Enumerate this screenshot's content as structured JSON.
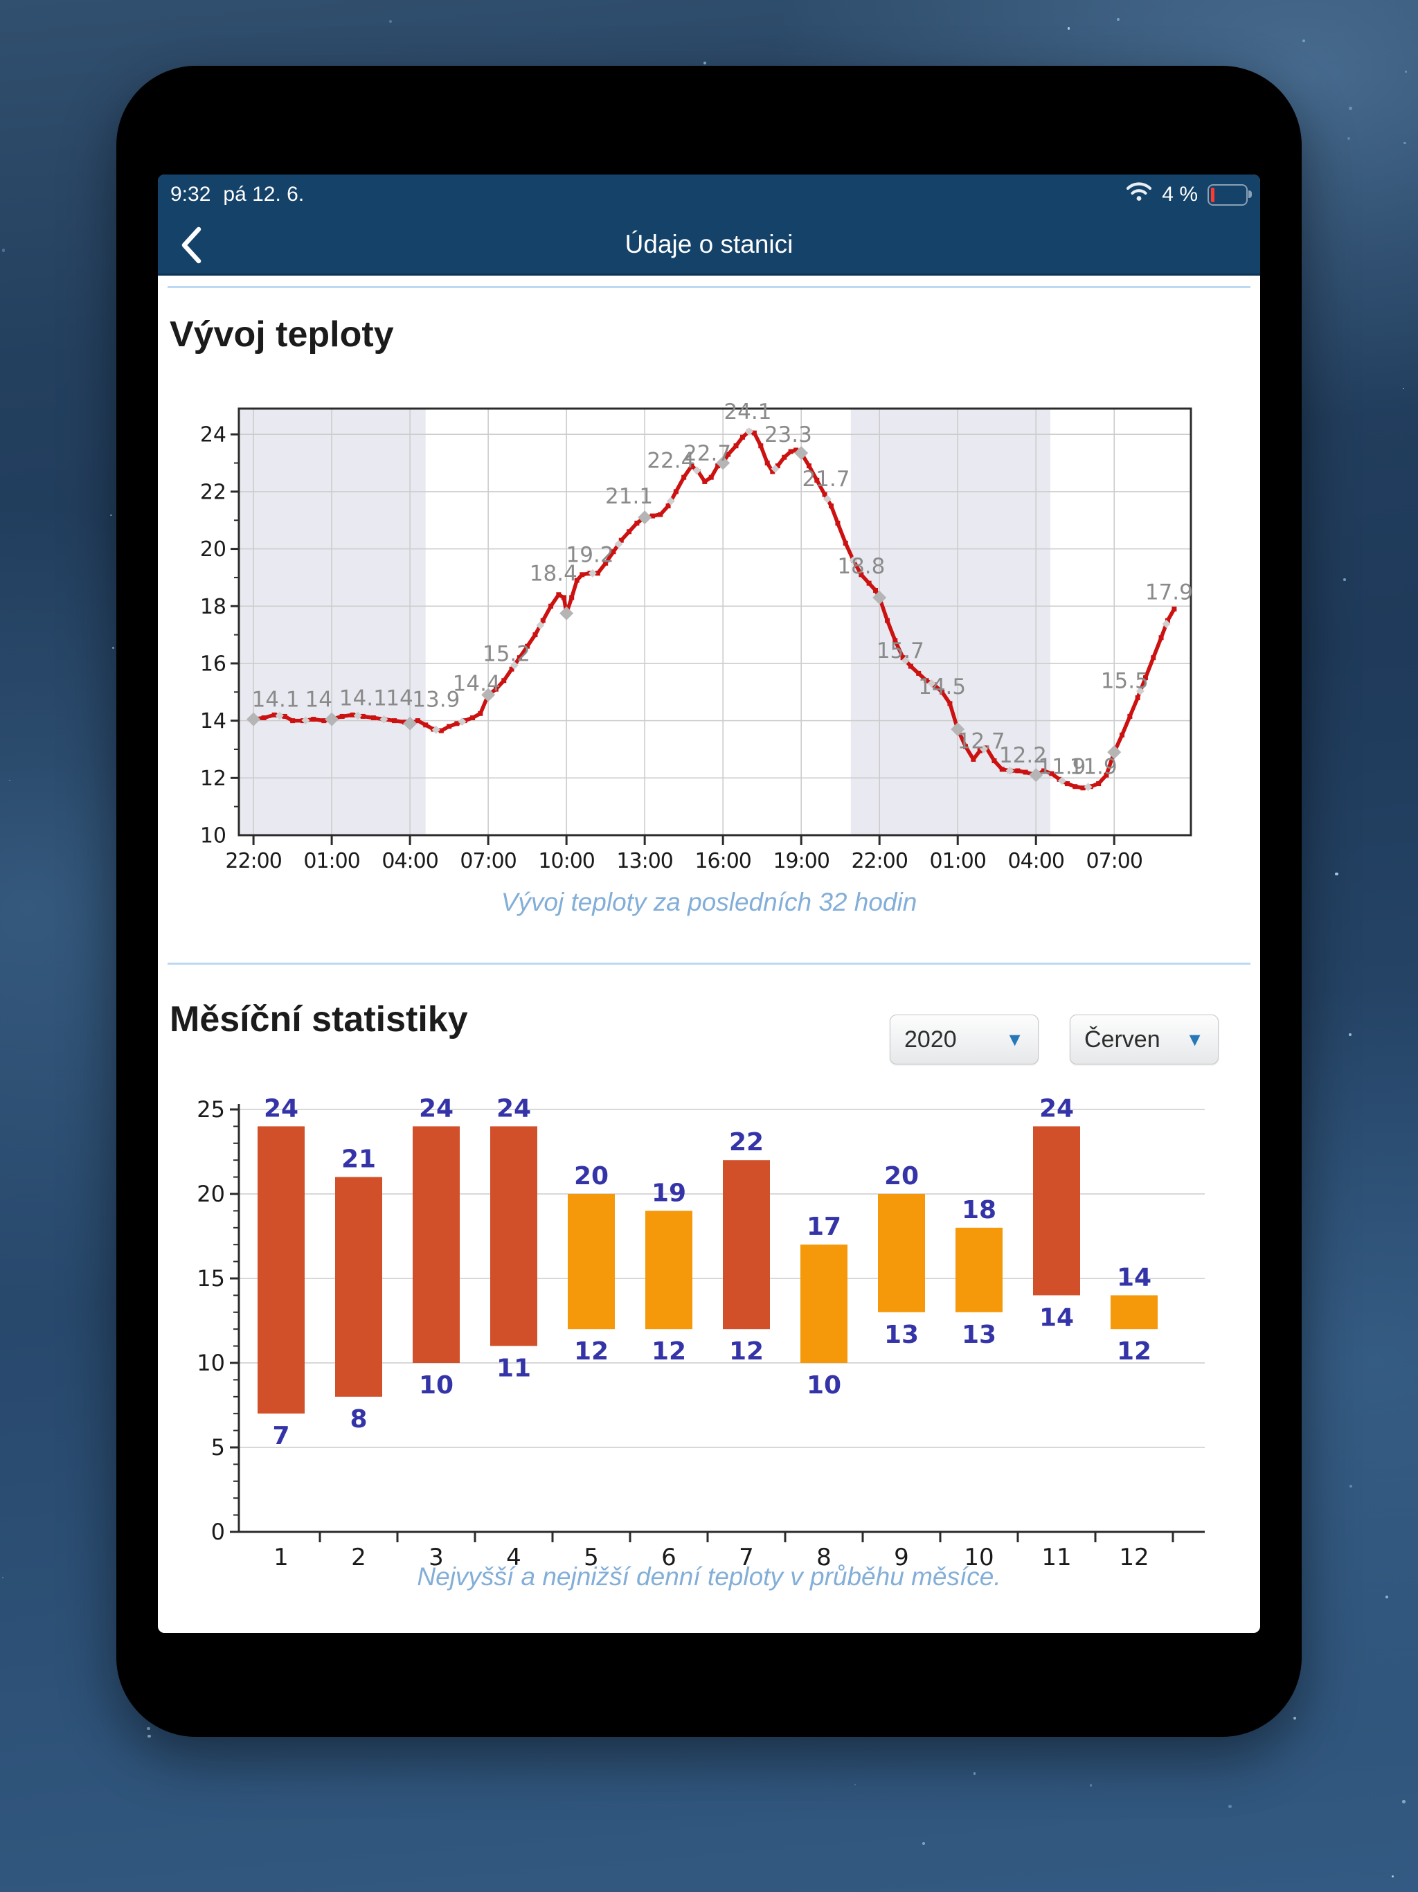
{
  "status_bar": {
    "time": "9:32",
    "date": "pá 12. 6.",
    "battery_percent": "4 %"
  },
  "nav": {
    "title": "Údaje o stanici"
  },
  "temp_section": {
    "title": "Vývoj teploty",
    "caption": "Vývoj teploty za posledních 32 hodin"
  },
  "monthly_section": {
    "title": "Měsíční statistiky",
    "caption": "Nejvyšší a nejnižší denní teploty v průběhu měsíce.",
    "year": "2020",
    "month": "Červen",
    "dropdown_arrow": "▼"
  },
  "colors": {
    "nav_blue": "#154269",
    "accent_blue": "#2878b8",
    "caption_blue": "#82aed8",
    "divider_blue": "#bcd8f2",
    "battery_red": "#ff3b30"
  },
  "chart_data": [
    {
      "type": "line",
      "title": "Vývoj teploty",
      "xlabel": "",
      "ylabel": "",
      "x_tick_hours": [
        0,
        3,
        6,
        9,
        12,
        15,
        18,
        21,
        24,
        27,
        30,
        33
      ],
      "x_tick_labels": [
        "22:00",
        "01:00",
        "04:00",
        "07:00",
        "10:00",
        "13:00",
        "16:00",
        "19:00",
        "22:00",
        "01:00",
        "04:00",
        "07:00"
      ],
      "xlim": [
        -0.56,
        35.94
      ],
      "ylim": [
        10,
        24.9
      ],
      "yticks": [
        10,
        12,
        14,
        16,
        18,
        20,
        22,
        24
      ],
      "grid": true,
      "night_bands": [
        [
          -0.56,
          6.6
        ],
        [
          22.9,
          30.55
        ]
      ],
      "band_color": "#e9eaf1",
      "line_color": "#cc1111",
      "marker_color": "#b5b5b5",
      "label_color": "#8a8a8a",
      "points": [
        [
          0,
          14.05
        ],
        [
          0.4,
          14.1
        ],
        [
          0.8,
          14.2
        ],
        [
          1.2,
          14.15
        ],
        [
          1.5,
          14.0
        ],
        [
          1.9,
          14.0
        ],
        [
          2.3,
          14.05
        ],
        [
          2.7,
          14.0
        ],
        [
          3,
          14.05
        ],
        [
          3.4,
          14.15
        ],
        [
          3.8,
          14.2
        ],
        [
          4.2,
          14.15
        ],
        [
          4.6,
          14.1
        ],
        [
          5,
          14.05
        ],
        [
          5.4,
          14.0
        ],
        [
          5.8,
          13.95
        ],
        [
          6,
          13.9
        ],
        [
          6.3,
          14.0
        ],
        [
          6.6,
          13.85
        ],
        [
          6.9,
          13.7
        ],
        [
          7.2,
          13.65
        ],
        [
          7.5,
          13.8
        ],
        [
          7.8,
          13.9
        ],
        [
          8.1,
          14.0
        ],
        [
          8.4,
          14.1
        ],
        [
          8.7,
          14.25
        ],
        [
          9,
          14.9
        ],
        [
          9.3,
          15.1
        ],
        [
          9.6,
          15.4
        ],
        [
          9.9,
          15.8
        ],
        [
          10.2,
          16.2
        ],
        [
          10.5,
          16.6
        ],
        [
          10.8,
          17.0
        ],
        [
          11.1,
          17.5
        ],
        [
          11.4,
          18.0
        ],
        [
          11.7,
          18.4
        ],
        [
          11.9,
          18.3
        ],
        [
          12,
          17.75
        ],
        [
          12.2,
          18.3
        ],
        [
          12.4,
          18.9
        ],
        [
          12.6,
          19.1
        ],
        [
          12.9,
          19.15
        ],
        [
          13.2,
          19.15
        ],
        [
          13.5,
          19.5
        ],
        [
          13.8,
          19.9
        ],
        [
          14.1,
          20.3
        ],
        [
          14.4,
          20.6
        ],
        [
          14.7,
          20.9
        ],
        [
          15,
          21.1
        ],
        [
          15.3,
          21.15
        ],
        [
          15.6,
          21.2
        ],
        [
          15.9,
          21.5
        ],
        [
          16.2,
          22.0
        ],
        [
          16.5,
          22.5
        ],
        [
          16.8,
          22.9
        ],
        [
          17.05,
          22.7
        ],
        [
          17.3,
          22.35
        ],
        [
          17.55,
          22.5
        ],
        [
          17.8,
          22.9
        ],
        [
          18,
          23.0
        ],
        [
          18.2,
          23.3
        ],
        [
          18.5,
          23.6
        ],
        [
          18.75,
          23.9
        ],
        [
          19,
          24.1
        ],
        [
          19.2,
          24.05
        ],
        [
          19.45,
          23.6
        ],
        [
          19.7,
          23.0
        ],
        [
          19.9,
          22.7
        ],
        [
          20.1,
          22.9
        ],
        [
          20.35,
          23.2
        ],
        [
          20.6,
          23.4
        ],
        [
          20.8,
          23.45
        ],
        [
          21,
          23.35
        ],
        [
          21.3,
          22.9
        ],
        [
          21.6,
          22.4
        ],
        [
          21.9,
          21.9
        ],
        [
          22.15,
          21.5
        ],
        [
          22.4,
          20.9
        ],
        [
          22.7,
          20.2
        ],
        [
          23,
          19.6
        ],
        [
          23.3,
          19.1
        ],
        [
          23.6,
          18.8
        ],
        [
          23.85,
          18.55
        ],
        [
          24,
          18.3
        ],
        [
          24.3,
          17.5
        ],
        [
          24.6,
          16.8
        ],
        [
          24.9,
          16.2
        ],
        [
          25.2,
          15.9
        ],
        [
          25.5,
          15.65
        ],
        [
          25.8,
          15.4
        ],
        [
          26.1,
          15.25
        ],
        [
          26.4,
          15.0
        ],
        [
          26.7,
          14.6
        ],
        [
          27,
          13.7
        ],
        [
          27.3,
          13.1
        ],
        [
          27.6,
          12.65
        ],
        [
          27.85,
          12.95
        ],
        [
          28.1,
          13.05
        ],
        [
          28.4,
          12.6
        ],
        [
          28.7,
          12.3
        ],
        [
          29,
          12.25
        ],
        [
          29.3,
          12.25
        ],
        [
          29.6,
          12.2
        ],
        [
          30,
          12.1
        ],
        [
          30.3,
          12.25
        ],
        [
          30.6,
          12.15
        ],
        [
          30.9,
          11.95
        ],
        [
          31.2,
          11.8
        ],
        [
          31.5,
          11.7
        ],
        [
          31.8,
          11.65
        ],
        [
          32.1,
          11.7
        ],
        [
          32.4,
          11.8
        ],
        [
          32.7,
          12.1
        ],
        [
          33,
          12.9
        ],
        [
          33.3,
          13.5
        ],
        [
          33.6,
          14.15
        ],
        [
          33.9,
          14.8
        ],
        [
          34.2,
          15.5
        ],
        [
          34.5,
          16.2
        ],
        [
          34.8,
          16.9
        ],
        [
          35.05,
          17.5
        ],
        [
          35.3,
          17.9
        ]
      ],
      "markers_3h": [
        [
          0,
          14.05
        ],
        [
          3,
          14.05
        ],
        [
          6,
          13.9
        ],
        [
          9,
          14.9
        ],
        [
          12,
          17.75
        ],
        [
          15,
          21.1
        ],
        [
          18,
          23.0
        ],
        [
          21,
          23.35
        ],
        [
          24,
          18.3
        ],
        [
          27,
          13.7
        ],
        [
          30,
          12.1
        ],
        [
          33,
          12.9
        ]
      ],
      "labels": [
        {
          "h": 0.85,
          "v": 14.75,
          "text": "14.1"
        },
        {
          "h": 2.5,
          "v": 14.75,
          "text": "14"
        },
        {
          "h": 4.2,
          "v": 14.8,
          "text": "14.1"
        },
        {
          "h": 5.6,
          "v": 14.8,
          "text": "14"
        },
        {
          "h": 7.0,
          "v": 14.75,
          "text": "13.9"
        },
        {
          "h": 8.55,
          "v": 15.3,
          "text": "14.4"
        },
        {
          "h": 9.7,
          "v": 16.35,
          "text": "15.2"
        },
        {
          "h": 11.5,
          "v": 19.15,
          "text": "18.4"
        },
        {
          "h": 12.9,
          "v": 19.8,
          "text": "19.2"
        },
        {
          "h": 14.4,
          "v": 21.85,
          "text": "21.1"
        },
        {
          "h": 16.0,
          "v": 23.1,
          "text": "22.4"
        },
        {
          "h": 17.4,
          "v": 23.35,
          "text": "22.7"
        },
        {
          "h": 18.95,
          "v": 24.8,
          "text": "24.1"
        },
        {
          "h": 20.5,
          "v": 24.0,
          "text": "23.3"
        },
        {
          "h": 21.95,
          "v": 22.45,
          "text": "21.7"
        },
        {
          "h": 23.3,
          "v": 19.4,
          "text": "18.8"
        },
        {
          "h": 24.8,
          "v": 16.45,
          "text": "15.7"
        },
        {
          "h": 26.4,
          "v": 15.2,
          "text": "14.5"
        },
        {
          "h": 27.9,
          "v": 13.3,
          "text": "12.7"
        },
        {
          "h": 29.5,
          "v": 12.8,
          "text": "12.2"
        },
        {
          "h": 31.0,
          "v": 12.4,
          "text": "11.9"
        },
        {
          "h": 32.2,
          "v": 12.4,
          "text": "11.9"
        },
        {
          "h": 33.4,
          "v": 15.4,
          "text": "15.5"
        },
        {
          "h": 35.1,
          "v": 18.5,
          "text": "17.9"
        }
      ]
    },
    {
      "type": "bar",
      "title": "Měsíční statistiky",
      "xlabel": "",
      "ylabel": "",
      "categories": [
        1,
        2,
        3,
        4,
        5,
        6,
        7,
        8,
        9,
        10,
        11,
        12
      ],
      "bars": [
        {
          "day": 1,
          "min": 7,
          "max": 24
        },
        {
          "day": 2,
          "min": 8,
          "max": 21
        },
        {
          "day": 3,
          "min": 10,
          "max": 24
        },
        {
          "day": 4,
          "min": 11,
          "max": 24
        },
        {
          "day": 5,
          "min": 12,
          "max": 20
        },
        {
          "day": 6,
          "min": 12,
          "max": 19
        },
        {
          "day": 7,
          "min": 12,
          "max": 22
        },
        {
          "day": 8,
          "min": 10,
          "max": 17
        },
        {
          "day": 9,
          "min": 13,
          "max": 20
        },
        {
          "day": 10,
          "min": 13,
          "max": 18
        },
        {
          "day": 11,
          "min": 14,
          "max": 24
        },
        {
          "day": 12,
          "min": 12,
          "max": 14
        }
      ],
      "ylim": [
        0,
        25
      ],
      "yticks": [
        0,
        5,
        10,
        15,
        20,
        25
      ],
      "grid": true,
      "color_hot": "#d1502a",
      "color_mild": "#f5990b",
      "hot_threshold": 21,
      "value_label_color": "#3434a8"
    }
  ]
}
